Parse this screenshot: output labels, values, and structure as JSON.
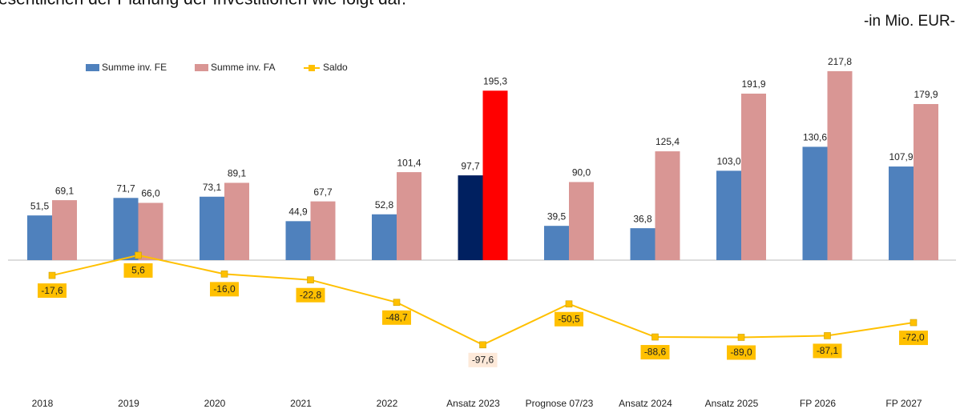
{
  "chart_data": {
    "type": "bar",
    "heading": "esentlichen der Planung der Investitionen wie folgt dar.",
    "unit_label": "-in Mio. EUR-",
    "categories": [
      "2018",
      "2019",
      "2020",
      "2021",
      "2022",
      "Ansatz 2023",
      "Prognose 07/23",
      "Ansatz 2024",
      "Ansatz 2025",
      "FP 2026",
      "FP 2027"
    ],
    "series": [
      {
        "name": "Summe inv. FE",
        "type": "bar",
        "color": "#4f81bd",
        "colors": [
          "#4f81bd",
          "#4f81bd",
          "#4f81bd",
          "#4f81bd",
          "#4f81bd",
          "#002060",
          "#4f81bd",
          "#4f81bd",
          "#4f81bd",
          "#4f81bd",
          "#4f81bd"
        ],
        "values": [
          51.5,
          71.7,
          73.1,
          44.9,
          52.8,
          97.7,
          39.5,
          36.8,
          103.0,
          130.6,
          107.9
        ],
        "value_labels": [
          "51,5",
          "71,7",
          "73,1",
          "44,9",
          "52,8",
          "97,7",
          "39,5",
          "36,8",
          "103,0",
          "130,6",
          "107,9"
        ]
      },
      {
        "name": "Summe inv. FA",
        "type": "bar",
        "color": "#d99694",
        "colors": [
          "#d99694",
          "#d99694",
          "#d99694",
          "#d99694",
          "#d99694",
          "#ff0000",
          "#d99694",
          "#d99694",
          "#d99694",
          "#d99694",
          "#d99694"
        ],
        "values": [
          69.1,
          66.0,
          89.1,
          67.7,
          101.4,
          195.3,
          90.0,
          125.4,
          191.9,
          217.8,
          179.9
        ],
        "value_labels": [
          "69,1",
          "66,0",
          "89,1",
          "67,7",
          "101,4",
          "195,3",
          "90,0",
          "125,4",
          "191,9",
          "217,8",
          "179,9"
        ]
      },
      {
        "name": "Saldo",
        "type": "line",
        "color": "#ffc000",
        "label_colors": [
          "#ffc000",
          "#ffc000",
          "#ffc000",
          "#ffc000",
          "#ffc000",
          "#fde9d9",
          "#ffc000",
          "#ffc000",
          "#ffc000",
          "#ffc000",
          "#ffc000"
        ],
        "values": [
          -17.6,
          5.6,
          -16.0,
          -22.8,
          -48.7,
          -97.6,
          -50.5,
          -88.6,
          -89.0,
          -87.1,
          -72.0
        ],
        "value_labels": [
          "-17,6",
          "5,6",
          "-16,0",
          "-22,8",
          "-48,7",
          "-97,6",
          "-50,5",
          "-88,6",
          "-89,0",
          "-87,1",
          "-72,0"
        ]
      }
    ]
  }
}
